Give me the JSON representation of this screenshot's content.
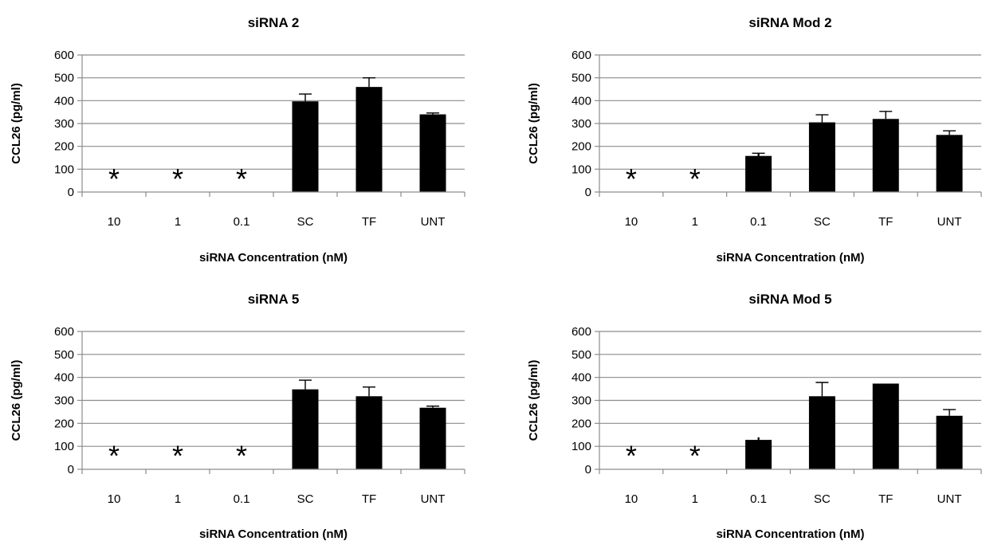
{
  "chart_data": [
    {
      "type": "bar",
      "title": "siRNA 2",
      "xlabel": "siRNA Concentration (nM)",
      "ylabel": "CCL26 (pg/ml)",
      "ylim": [
        0,
        600
      ],
      "yticks": [
        "0",
        "100",
        "200",
        "300",
        "400",
        "500",
        "600"
      ],
      "categories": [
        "10",
        "1",
        "0.1",
        "SC",
        "TF",
        "UNT"
      ],
      "values": [
        0,
        0,
        0,
        397,
        460,
        340
      ],
      "errors": [
        0,
        0,
        0,
        32,
        40,
        6
      ],
      "significance": [
        "*",
        "*",
        "*",
        "",
        "",
        ""
      ],
      "grid": true,
      "bar_color": "#000000"
    },
    {
      "type": "bar",
      "title": "siRNA Mod 2",
      "xlabel": "siRNA Concentration (nM)",
      "ylabel": "CCL26 (pg/ml)",
      "ylim": [
        0,
        600
      ],
      "yticks": [
        "0",
        "100",
        "200",
        "300",
        "400",
        "500",
        "600"
      ],
      "categories": [
        "10",
        "1",
        "0.1",
        "SC",
        "TF",
        "UNT"
      ],
      "values": [
        0,
        0,
        158,
        305,
        320,
        250
      ],
      "errors": [
        0,
        0,
        12,
        33,
        33,
        18
      ],
      "significance": [
        "*",
        "*",
        "*",
        "",
        "",
        ""
      ],
      "grid": true,
      "bar_color": "#000000"
    },
    {
      "type": "bar",
      "title": "siRNA 5",
      "xlabel": "siRNA Concentration (nM)",
      "ylabel": "CCL26 (pg/ml)",
      "ylim": [
        0,
        600
      ],
      "yticks": [
        "0",
        "100",
        "200",
        "300",
        "400",
        "500",
        "600"
      ],
      "categories": [
        "10",
        "1",
        "0.1",
        "SC",
        "TF",
        "UNT"
      ],
      "values": [
        0,
        0,
        0,
        348,
        318,
        268
      ],
      "errors": [
        0,
        0,
        0,
        40,
        40,
        7
      ],
      "significance": [
        "*",
        "*",
        "*",
        "",
        "",
        ""
      ],
      "grid": true,
      "bar_color": "#000000"
    },
    {
      "type": "bar",
      "title": "siRNA Mod 5",
      "xlabel": "siRNA Concentration (nM)",
      "ylabel": "CCL26 (pg/ml)",
      "ylim": [
        0,
        600
      ],
      "yticks": [
        "0",
        "100",
        "200",
        "300",
        "400",
        "500",
        "600"
      ],
      "categories": [
        "10",
        "1",
        "0.1",
        "SC",
        "TF",
        "UNT"
      ],
      "values": [
        0,
        0,
        128,
        318,
        373,
        233
      ],
      "errors": [
        0,
        0,
        0,
        60,
        0,
        27
      ],
      "significance": [
        "*",
        "*",
        "*",
        "",
        "",
        ""
      ],
      "grid": true,
      "bar_color": "#000000"
    }
  ]
}
